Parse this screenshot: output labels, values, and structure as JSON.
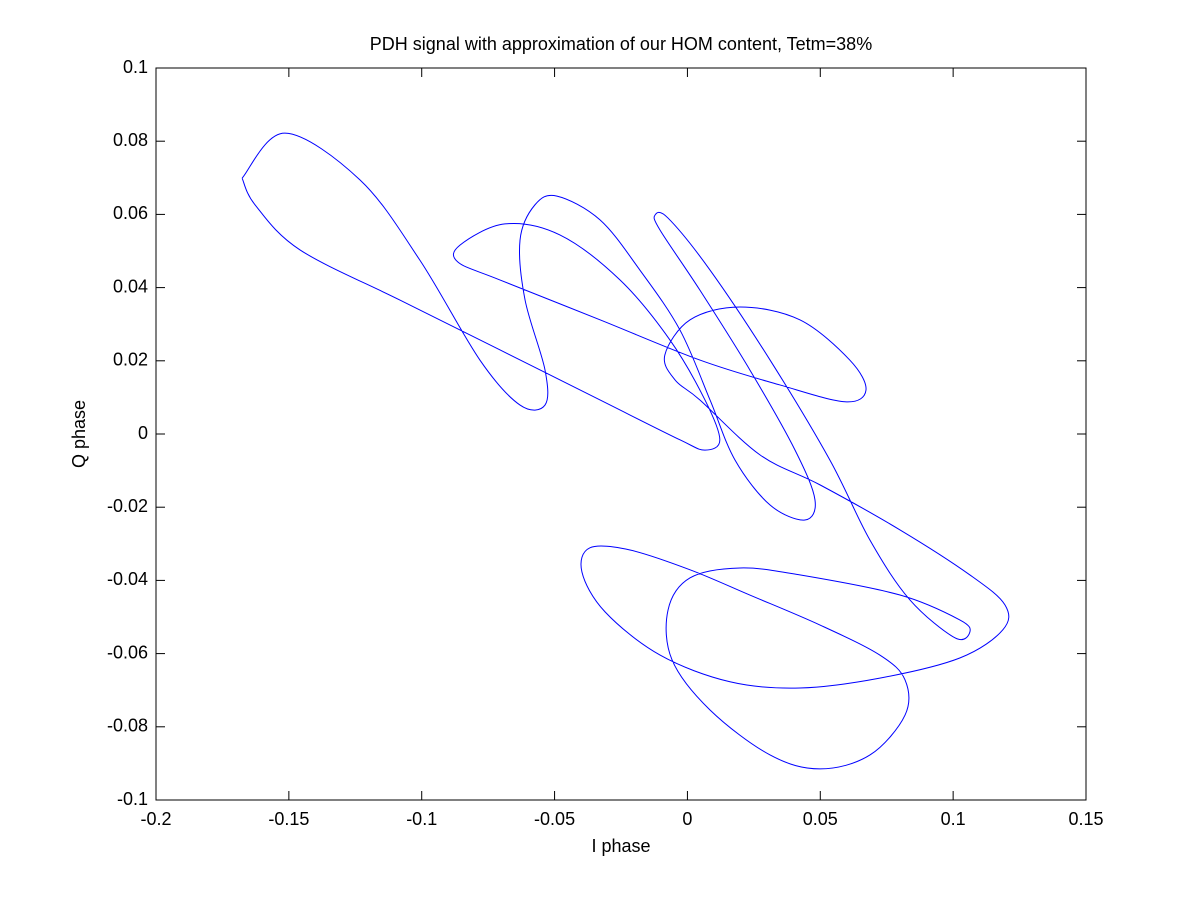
{
  "chart_data": {
    "type": "line",
    "title": "PDH signal with approximation of our HOM content, Tetm=38%",
    "x_label": "I phase",
    "y_label": "Q phase",
    "xlim": [
      -0.2,
      0.15
    ],
    "ylim": [
      -0.1,
      0.1
    ],
    "xticks": [
      -0.2,
      -0.15,
      -0.1,
      -0.05,
      0,
      0.05,
      0.1,
      0.15
    ],
    "yticks": [
      -0.1,
      -0.08,
      -0.06,
      -0.04,
      -0.02,
      0,
      0.02,
      0.04,
      0.06,
      0.08,
      0.1
    ],
    "grid": false,
    "series": [
      {
        "color": "#0000ff",
        "x": [
          -0.1676,
          -0.1515,
          -0.1232,
          -0.1007,
          -0.0781,
          -0.063,
          -0.0536,
          -0.0536,
          -0.0611,
          -0.063,
          -0.0574,
          -0.0491,
          -0.0329,
          -0.0179,
          -0.0028,
          0.0085,
          0.0179,
          0.0311,
          0.0442,
          0.048,
          0.0405,
          0.0235,
          0.0047,
          -0.0103,
          -0.0122,
          -0.0073,
          0.0085,
          0.0311,
          0.0536,
          0.0687,
          0.0837,
          0.1007,
          0.1063,
          0.1025,
          0.08,
          0.0423,
          0.0198,
          0.001,
          -0.0073,
          -0.0058,
          0.0085,
          0.0311,
          0.0499,
          0.0687,
          0.0819,
          0.0819,
          0.0724,
          0.0499,
          0.0235,
          0.001,
          -0.0216,
          -0.0367,
          -0.0397,
          -0.031,
          -0.0103,
          0.016,
          0.0423,
          0.0724,
          0.1025,
          0.1187,
          0.1195,
          0.1063,
          0.08,
          0.0499,
          0.0273,
          0.0047,
          -0.0047,
          -0.0085,
          0.001,
          0.0198,
          0.0423,
          0.0611,
          0.0672,
          0.0593,
          0.0348,
          0.0047,
          -0.0329,
          -0.0706,
          -0.0864,
          -0.0856,
          -0.0687,
          -0.048,
          -0.0254,
          -0.0066,
          0.0066,
          0.0122,
          0.0066,
          -0.0028,
          -0.0329,
          -0.0706,
          -0.1082,
          -0.1458,
          -0.1627,
          -0.1676
        ],
        "values": [
          0.0699,
          0.0822,
          0.0694,
          0.0475,
          0.0202,
          0.0079,
          0.0079,
          0.0175,
          0.0366,
          0.053,
          0.0626,
          0.065,
          0.0585,
          0.0448,
          0.0284,
          0.0093,
          -0.0071,
          -0.0194,
          -0.0235,
          -0.018,
          -0.0044,
          0.0175,
          0.0393,
          0.0557,
          0.0598,
          0.059,
          0.0448,
          0.0202,
          -0.0071,
          -0.029,
          -0.0453,
          -0.0557,
          -0.0541,
          -0.0508,
          -0.044,
          -0.0385,
          -0.0366,
          -0.0393,
          -0.0481,
          -0.0617,
          -0.0754,
          -0.0877,
          -0.0915,
          -0.0877,
          -0.0768,
          -0.0672,
          -0.0604,
          -0.0522,
          -0.044,
          -0.0371,
          -0.0317,
          -0.0311,
          -0.0377,
          -0.0486,
          -0.0604,
          -0.0677,
          -0.0694,
          -0.0667,
          -0.0612,
          -0.0535,
          -0.0467,
          -0.0385,
          -0.0262,
          -0.0139,
          -0.0057,
          0.0093,
          0.0148,
          0.0216,
          0.0312,
          0.0347,
          0.0312,
          0.0202,
          0.012,
          0.0088,
          0.0134,
          0.0202,
          0.0312,
          0.0421,
          0.047,
          0.0516,
          0.0574,
          0.0544,
          0.0421,
          0.0257,
          0.0093,
          -0.0016,
          -0.0044,
          -0.0016,
          0.0093,
          0.023,
          0.0366,
          0.0503,
          0.0626,
          0.0699
        ]
      }
    ]
  }
}
